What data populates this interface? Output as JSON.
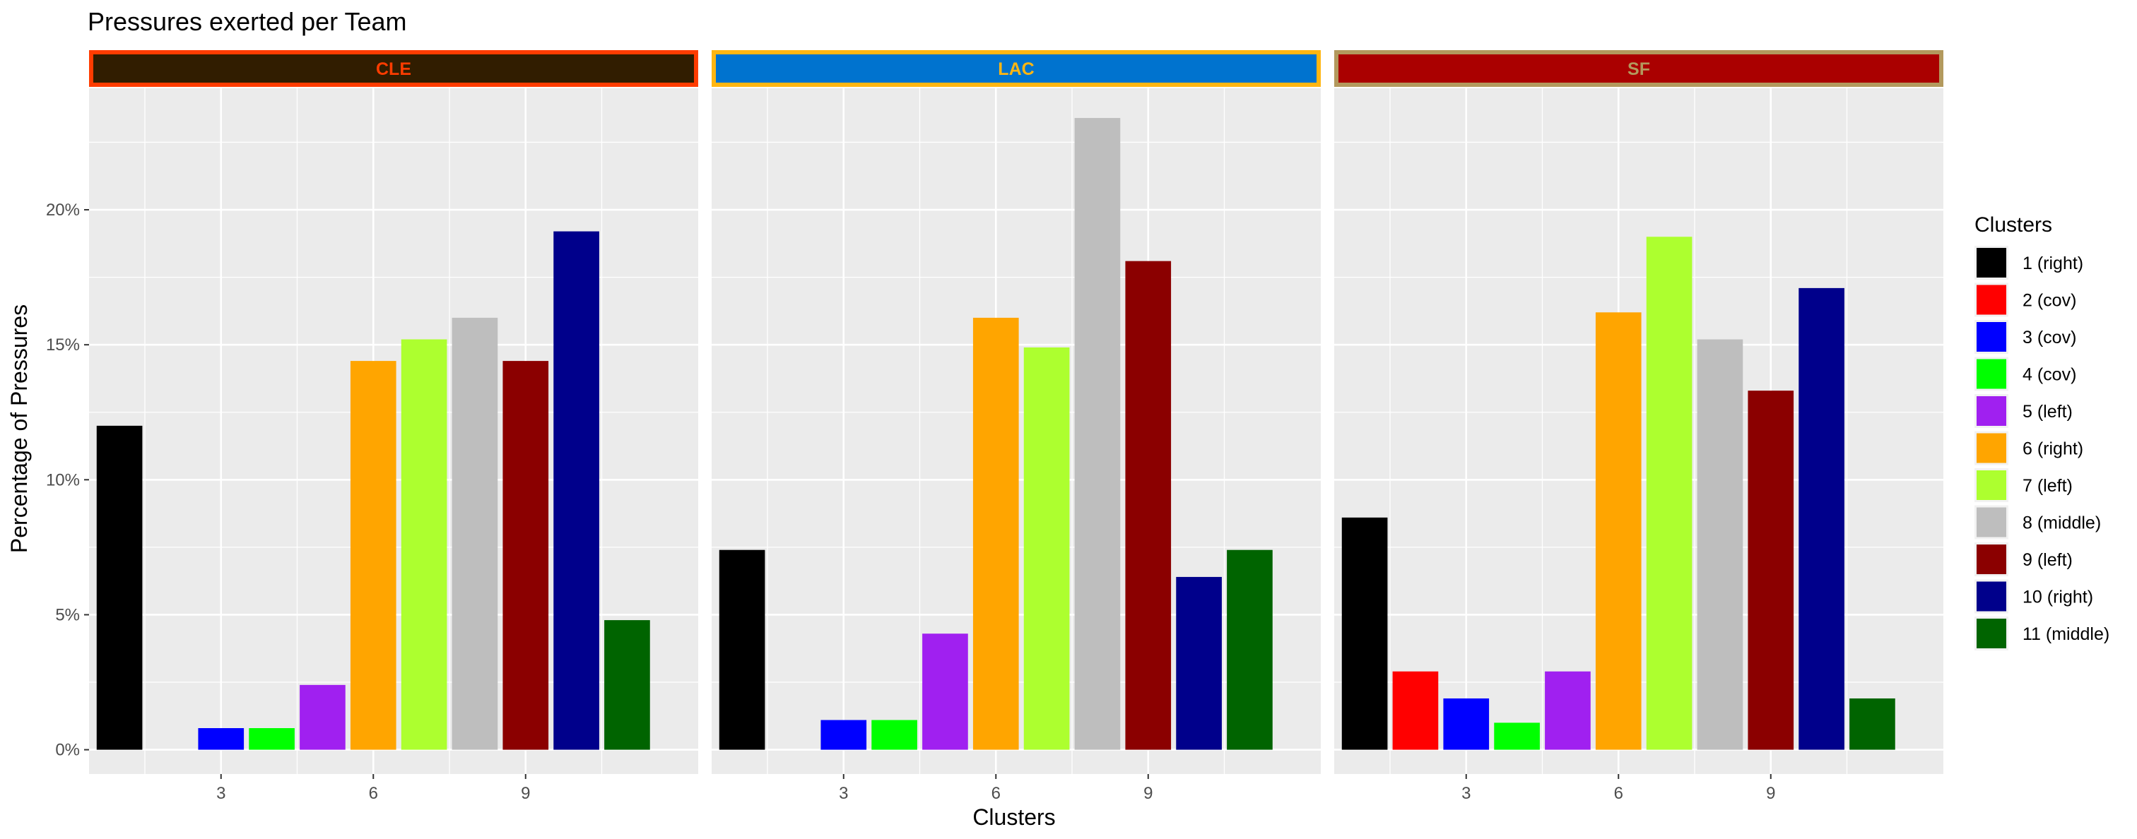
{
  "chart_data": {
    "type": "bar",
    "title": "Pressures exerted per Team",
    "xlabel": "Clusters",
    "ylabel": "Percentage of Pressures",
    "y_ticks": [
      "0%",
      "5%",
      "10%",
      "15%",
      "20%"
    ],
    "y_tick_values": [
      0,
      5,
      10,
      15,
      20
    ],
    "ylim": [
      -0.9,
      24.5
    ],
    "x_ticks": [
      "3",
      "6",
      "9"
    ],
    "x_tick_values": [
      3,
      6,
      9
    ],
    "x_range": [
      0.4,
      12.4
    ],
    "grid": true,
    "legend_position": "right",
    "legend_title": "Clusters",
    "categories": [
      1,
      2,
      3,
      4,
      5,
      6,
      7,
      8,
      9,
      10,
      11
    ],
    "clusters": [
      {
        "label": "1 (right)",
        "color": "#000000"
      },
      {
        "label": "2 (cov)",
        "color": "#FF0000"
      },
      {
        "label": "3 (cov)",
        "color": "#0000FF"
      },
      {
        "label": "4 (cov)",
        "color": "#00FF00"
      },
      {
        "label": "5 (left)",
        "color": "#A020F0"
      },
      {
        "label": "6 (right)",
        "color": "#FFA500"
      },
      {
        "label": "7 (left)",
        "color": "#ADFF2F"
      },
      {
        "label": "8 (middle)",
        "color": "#BEBEBE"
      },
      {
        "label": "9 (left)",
        "color": "#8B0000"
      },
      {
        "label": "10 (right)",
        "color": "#00008B"
      },
      {
        "label": "11 (middle)",
        "color": "#006400"
      }
    ],
    "panels": [
      {
        "team": "CLE",
        "strip_fill": "#311D00",
        "strip_border": "#FF3C00",
        "strip_text_color": "#FF3C00",
        "values": [
          12.0,
          0,
          0.8,
          0.8,
          2.4,
          14.4,
          15.2,
          16.0,
          14.4,
          19.2,
          4.8
        ]
      },
      {
        "team": "LAC",
        "strip_fill": "#0073CF",
        "strip_border": "#FFB612",
        "strip_text_color": "#FFB612",
        "values": [
          7.4,
          0,
          1.1,
          1.1,
          4.3,
          16.0,
          14.9,
          23.4,
          18.1,
          6.4,
          7.4
        ]
      },
      {
        "team": "SF",
        "strip_fill": "#AA0000",
        "strip_border": "#B3995D",
        "strip_text_color": "#B3995D",
        "values": [
          8.6,
          2.9,
          1.9,
          1.0,
          2.9,
          16.2,
          19.0,
          15.2,
          13.3,
          17.1,
          1.9
        ]
      }
    ]
  }
}
